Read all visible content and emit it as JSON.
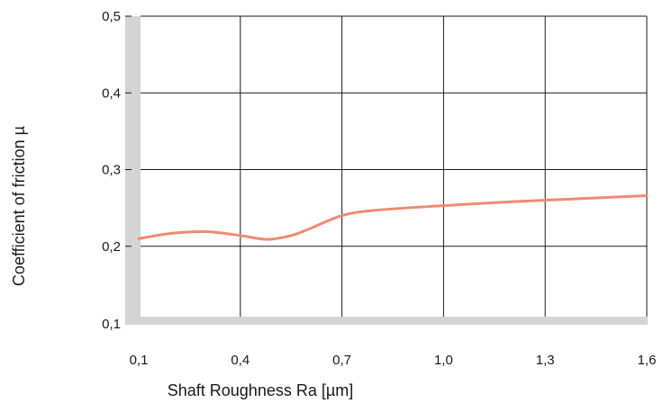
{
  "chart_data": {
    "type": "line",
    "xlabel": "Shaft Roughness Ra [µm]",
    "ylabel": "Coefficient of friction µ",
    "x_ticks": [
      "0,1",
      "0,4",
      "0,7",
      "1,0",
      "1,3",
      "1,6"
    ],
    "y_ticks": [
      "0,1",
      "0,2",
      "0,3",
      "0,4",
      "0,5"
    ],
    "xlim": [
      0.1,
      1.6
    ],
    "ylim": [
      0.1,
      0.5
    ],
    "grid": true,
    "series": [
      {
        "color": "#ef8c72",
        "x": [
          0.1,
          0.2,
          0.3,
          0.4,
          0.48,
          0.55,
          0.6,
          0.7,
          0.8,
          1.0,
          1.2,
          1.4,
          1.6
        ],
        "y": [
          0.21,
          0.217,
          0.219,
          0.214,
          0.209,
          0.214,
          0.222,
          0.24,
          0.247,
          0.253,
          0.258,
          0.262,
          0.266
        ]
      }
    ],
    "colors": {
      "axis_band": "#d4d4d4",
      "grid": "#1a1a1a",
      "line": "#ef8c72"
    }
  }
}
